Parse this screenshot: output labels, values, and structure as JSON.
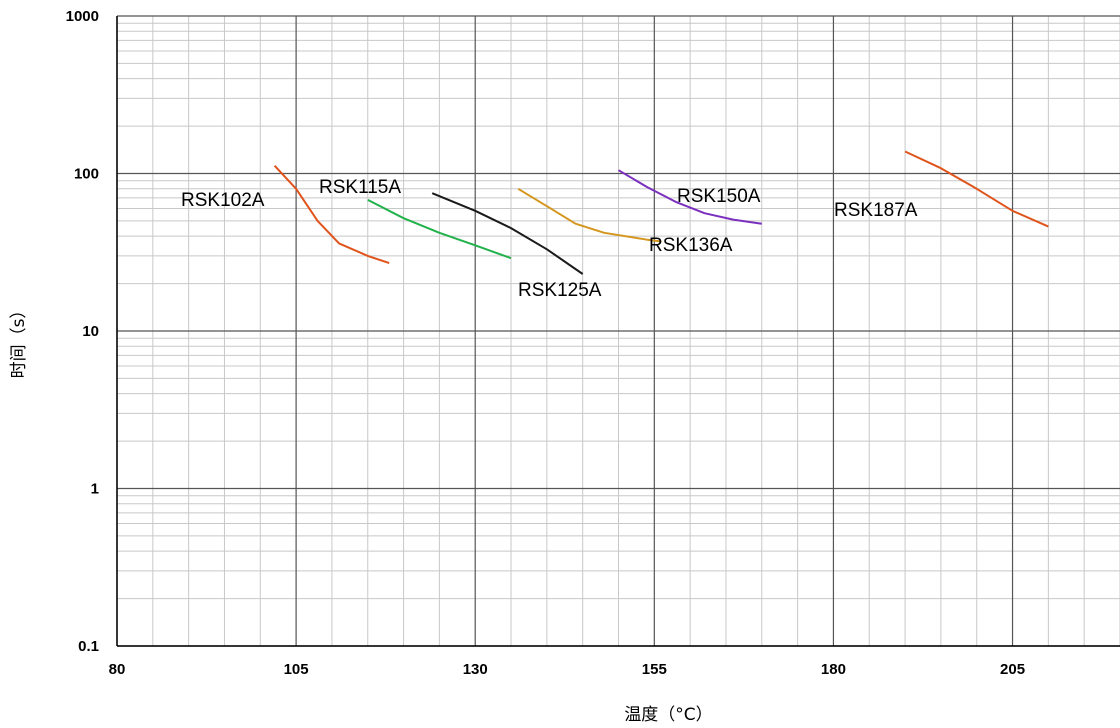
{
  "chart_data": {
    "type": "line",
    "xlabel": "温度（°C）",
    "ylabel": "时间（s）",
    "xlim": [
      80,
      220
    ],
    "ylim": [
      0.1,
      1000
    ],
    "yscale": "log",
    "grid": true,
    "x_ticks": [
      {
        "value": 80,
        "label": "80"
      },
      {
        "value": 105,
        "label": "105"
      },
      {
        "value": 130,
        "label": "130"
      },
      {
        "value": 155,
        "label": "155"
      },
      {
        "value": 180,
        "label": "180"
      },
      {
        "value": 205,
        "label": "205"
      }
    ],
    "y_ticks": [
      {
        "value": 0.1,
        "label": "0.1"
      },
      {
        "value": 1,
        "label": "1"
      },
      {
        "value": 10,
        "label": "10"
      },
      {
        "value": 100,
        "label": "100"
      },
      {
        "value": 1000,
        "label": "1000"
      }
    ],
    "series": [
      {
        "name": "RSK102A",
        "color": "#e0541c",
        "points": [
          [
            102,
            112
          ],
          [
            105,
            80
          ],
          [
            108,
            50
          ],
          [
            111,
            36
          ],
          [
            115,
            30
          ],
          [
            118,
            27
          ]
        ]
      },
      {
        "name": "RSK115A",
        "color": "#22b24c",
        "points": [
          [
            115,
            68
          ],
          [
            120,
            52
          ],
          [
            125,
            42
          ],
          [
            130,
            35
          ],
          [
            135,
            29
          ]
        ]
      },
      {
        "name": "RSK125A",
        "color": "#1a1a1a",
        "points": [
          [
            124,
            75
          ],
          [
            130,
            58
          ],
          [
            135,
            45
          ],
          [
            140,
            33
          ],
          [
            145,
            23
          ]
        ]
      },
      {
        "name": "RSK136A",
        "color": "#d4961e",
        "points": [
          [
            136,
            80
          ],
          [
            140,
            62
          ],
          [
            144,
            48
          ],
          [
            148,
            42
          ],
          [
            154,
            38
          ],
          [
            156,
            37
          ]
        ]
      },
      {
        "name": "RSK150A",
        "color": "#7b2fbe",
        "points": [
          [
            150,
            105
          ],
          [
            154,
            82
          ],
          [
            158,
            66
          ],
          [
            162,
            56
          ],
          [
            166,
            51
          ],
          [
            170,
            48
          ]
        ]
      },
      {
        "name": "RSK187A",
        "color": "#e0541c",
        "points": [
          [
            190,
            138
          ],
          [
            195,
            108
          ],
          [
            200,
            80
          ],
          [
            205,
            58
          ],
          [
            210,
            46
          ]
        ]
      }
    ],
    "label_texts": [
      "RSK102A",
      "RSK115A",
      "RSK125A",
      "RSK136A",
      "RSK150A",
      "RSK187A"
    ]
  }
}
